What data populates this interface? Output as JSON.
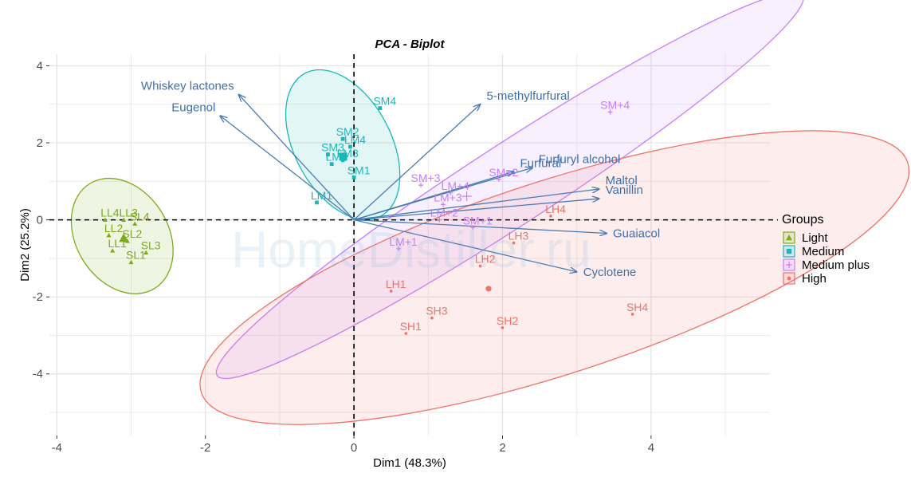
{
  "chart_data": {
    "type": "scatter",
    "title": "PCA - Biplot",
    "xlabel": "Dim1 (48.3%)",
    "ylabel": "Dim2 (25.2%)",
    "xlim": [
      -4.1,
      5.6
    ],
    "ylim": [
      -5.6,
      4.3
    ],
    "xticks": [
      -4,
      -2,
      0,
      2,
      4
    ],
    "yticks": [
      -4,
      -2,
      0,
      2,
      4
    ],
    "grid": true,
    "legend_position": "right",
    "legend_title": "Groups",
    "watermark": "HomeDistiller.ru",
    "groups": [
      {
        "name": "Light",
        "color": "#7caa1a",
        "marker": "triangle",
        "ellipse": {
          "cx": -3.12,
          "cy": -0.42,
          "rx": 0.62,
          "ry": 1.6,
          "angle": 32
        },
        "points": [
          {
            "label": "LL4",
            "x": -3.35,
            "y": 0.0
          },
          {
            "label": "LL3",
            "x": -3.1,
            "y": 0.0
          },
          {
            "label": "SL4",
            "x": -2.95,
            "y": -0.1
          },
          {
            "label": "LL2",
            "x": -3.3,
            "y": -0.4
          },
          {
            "label": "SL2",
            "x": -3.05,
            "y": -0.55
          },
          {
            "label": "LL1",
            "x": -3.25,
            "y": -0.8
          },
          {
            "label": "SL3",
            "x": -2.8,
            "y": -0.85
          },
          {
            "label": "SL1",
            "x": -3.0,
            "y": -1.1
          }
        ]
      },
      {
        "name": "Medium",
        "color": "#1ab7b9",
        "marker": "square",
        "ellipse": {
          "cx": -0.15,
          "cy": 1.95,
          "rx": 0.65,
          "ry": 2.1,
          "angle": 28
        },
        "points": [
          {
            "label": "SM4",
            "x": 0.35,
            "y": 2.9
          },
          {
            "label": "SM2",
            "x": -0.15,
            "y": 2.1
          },
          {
            "label": "LM4",
            "x": -0.05,
            "y": 1.9
          },
          {
            "label": "SM3",
            "x": -0.35,
            "y": 1.7
          },
          {
            "label": "LM3",
            "x": -0.15,
            "y": 1.55
          },
          {
            "label": "LM2",
            "x": -0.3,
            "y": 1.45
          },
          {
            "label": "SM1",
            "x": 0.0,
            "y": 1.1
          },
          {
            "label": "LM1",
            "x": -0.5,
            "y": 0.45
          }
        ]
      },
      {
        "name": "Medium plus",
        "color": "#c77cff",
        "marker": "plus",
        "ellipse": {
          "cx": 2.1,
          "cy": 0.9,
          "rx": 4.7,
          "ry": 1.05,
          "angle": 33
        },
        "points": [
          {
            "label": "SM+4",
            "x": 3.45,
            "y": 2.8
          },
          {
            "label": "SM+2",
            "x": 1.95,
            "y": 1.05
          },
          {
            "label": "SM+3",
            "x": 0.9,
            "y": 0.9
          },
          {
            "label": "LM+4",
            "x": 1.3,
            "y": 0.7
          },
          {
            "label": "LM+3",
            "x": 1.2,
            "y": 0.4
          },
          {
            "label": "LM+2",
            "x": 1.15,
            "y": 0.0
          },
          {
            "label": "SM+1",
            "x": 1.6,
            "y": -0.2
          },
          {
            "label": "LM+1",
            "x": 0.6,
            "y": -0.75
          }
        ]
      },
      {
        "name": "High",
        "color": "#f07167",
        "marker": "circle",
        "ellipse": {
          "cx": 2.7,
          "cy": -1.5,
          "rx": 5.0,
          "ry": 2.5,
          "angle": 18
        },
        "points": [
          {
            "label": "LH4",
            "x": 2.65,
            "y": 0.1
          },
          {
            "label": "LH3",
            "x": 2.15,
            "y": -0.6
          },
          {
            "label": "LH2",
            "x": 1.7,
            "y": -1.2
          },
          {
            "label": "LH1",
            "x": 0.5,
            "y": -1.85
          },
          {
            "label": "SH4",
            "x": 3.75,
            "y": -2.45
          },
          {
            "label": "SH3",
            "x": 1.05,
            "y": -2.55
          },
          {
            "label": "SH2",
            "x": 2.0,
            "y": -2.8
          },
          {
            "label": "SH1",
            "x": 0.7,
            "y": -2.95
          }
        ]
      }
    ],
    "variables": [
      {
        "name": "Whiskey lactones",
        "x": -1.55,
        "y": 3.25
      },
      {
        "name": "Eugenol",
        "x": -1.8,
        "y": 2.7
      },
      {
        "name": "5-methylfurfural",
        "x": 1.7,
        "y": 3.0
      },
      {
        "name": "Furfural",
        "x": 2.15,
        "y": 1.25
      },
      {
        "name": "Furfuryl alcohol",
        "x": 2.4,
        "y": 1.35
      },
      {
        "name": "Maltol",
        "x": 3.3,
        "y": 0.8
      },
      {
        "name": "Vanillin",
        "x": 3.3,
        "y": 0.55
      },
      {
        "name": "Guaiacol",
        "x": 3.4,
        "y": -0.35
      },
      {
        "name": "Cyclotene",
        "x": 3.0,
        "y": -1.35
      }
    ]
  }
}
